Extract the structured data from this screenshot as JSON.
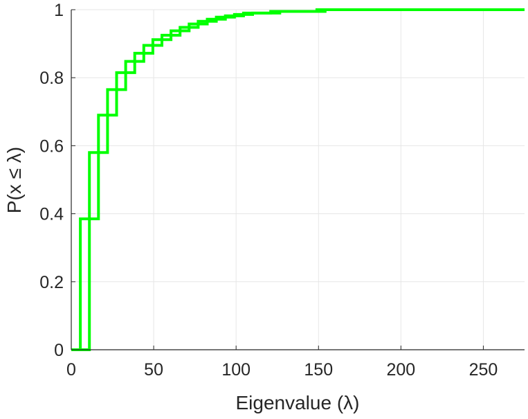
{
  "chart_data": {
    "type": "line",
    "subtype": "empirical-cdf-stairs",
    "title": "",
    "xlabel": "Eigenvalue (λ)",
    "ylabel": "P(x ≤ λ)",
    "xlim": [
      0,
      275
    ],
    "ylim": [
      0,
      1
    ],
    "xticks": [
      0,
      50,
      100,
      150,
      200,
      250
    ],
    "yticks": [
      0,
      0.2,
      0.4,
      0.6,
      0.8,
      1
    ],
    "xtick_labels": [
      "0",
      "50",
      "100",
      "150",
      "200",
      "250"
    ],
    "ytick_labels": [
      "0",
      "0.2",
      "0.4",
      "0.6",
      "0.8",
      "1"
    ],
    "grid": true,
    "legend": "none",
    "colors": {
      "series": "#00ff00",
      "axes": "#262626",
      "grid": "#e6e6e6"
    },
    "series": [
      {
        "x": [
          5.5,
          11,
          16.5,
          22,
          27.5,
          33,
          38.5,
          44,
          49.5,
          55,
          60.5,
          66,
          71.5,
          77,
          82.5,
          88,
          93.5,
          99,
          104.5,
          121,
          149,
          275
        ],
        "y": [
          0.385,
          0.58,
          0.69,
          0.765,
          0.815,
          0.848,
          0.872,
          0.895,
          0.912,
          0.925,
          0.938,
          0.948,
          0.958,
          0.966,
          0.972,
          0.978,
          0.982,
          0.986,
          0.99,
          0.995,
          1.0,
          1.0
        ]
      },
      {
        "x": [
          11,
          16.5,
          22,
          27.5,
          33,
          38.5,
          44,
          49.5,
          55,
          60.5,
          66,
          71.5,
          77,
          82.5,
          88,
          93.5,
          99,
          104.5,
          110,
          126.5,
          154,
          275
        ],
        "y": [
          0.385,
          0.58,
          0.69,
          0.765,
          0.815,
          0.848,
          0.872,
          0.895,
          0.912,
          0.925,
          0.938,
          0.948,
          0.958,
          0.966,
          0.972,
          0.978,
          0.982,
          0.986,
          0.99,
          0.995,
          1.0,
          1.0
        ]
      }
    ]
  }
}
